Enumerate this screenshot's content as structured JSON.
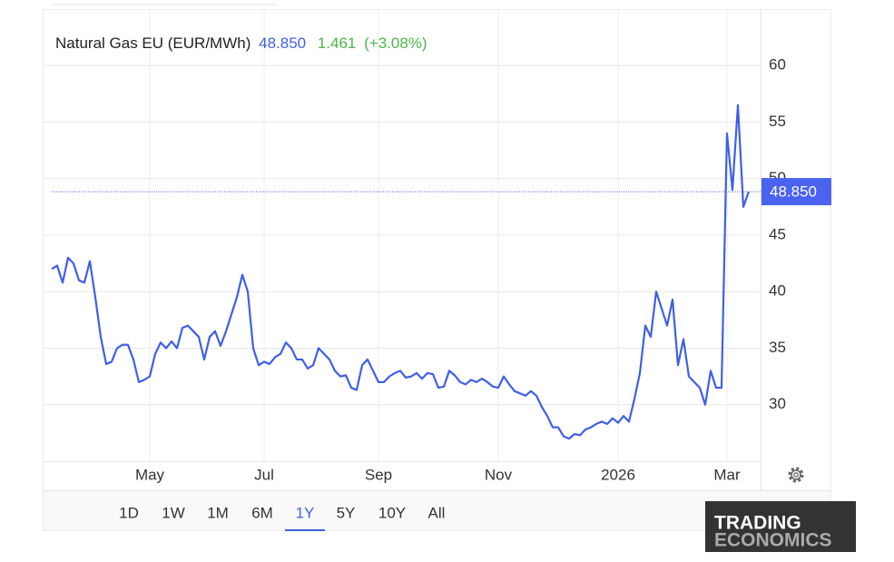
{
  "chart_data": {
    "type": "line",
    "title": "Natural Gas EU (EUR/MWh)",
    "last_price": {
      "value": 48.85,
      "label": "48.850"
    },
    "change": 1.461,
    "change_pct": {
      "value": 3.08,
      "label": "(+3.08%)"
    },
    "color": "#3f5fe6",
    "change_color": "#4fb548",
    "grid": true,
    "ylim": [
      25,
      65
    ],
    "yticks": [
      30,
      35,
      40,
      45,
      50,
      55,
      60
    ],
    "categories": [
      null,
      null,
      null,
      null,
      null,
      null,
      null,
      null,
      null,
      null,
      null,
      null,
      null,
      null,
      null,
      null,
      null,
      null,
      "May",
      null,
      null,
      null,
      null,
      null,
      null,
      null,
      null,
      null,
      null,
      null,
      null,
      null,
      null,
      null,
      null,
      null,
      null,
      null,
      null,
      "Jul",
      null,
      null,
      null,
      null,
      null,
      null,
      null,
      null,
      null,
      null,
      null,
      null,
      null,
      null,
      null,
      null,
      null,
      null,
      null,
      null,
      "Sep",
      null,
      null,
      null,
      null,
      null,
      null,
      null,
      null,
      null,
      null,
      null,
      null,
      null,
      null,
      null,
      null,
      null,
      null,
      null,
      null,
      null,
      "Nov",
      null,
      null,
      null,
      null,
      null,
      null,
      null,
      null,
      null,
      null,
      null,
      null,
      null,
      null,
      null,
      null,
      null,
      null,
      null,
      null,
      null,
      "2026",
      null,
      null,
      null,
      null,
      null,
      null,
      null,
      null,
      null,
      null,
      null,
      null,
      null,
      null,
      null,
      null,
      null,
      null,
      null,
      "Mar",
      null,
      null,
      null,
      null
    ],
    "values": [
      42,
      42.3,
      40.8,
      43,
      42.5,
      41,
      40.8,
      42.7,
      39.5,
      36,
      33.6,
      33.8,
      35,
      35.3,
      35.3,
      34,
      32,
      32.2,
      32.5,
      34.5,
      35.5,
      35,
      35.6,
      35,
      36.8,
      37,
      36.5,
      36,
      34,
      36,
      36.5,
      35.2,
      36.5,
      38,
      39.5,
      41.5,
      40,
      35,
      33.5,
      33.8,
      33.6,
      34.2,
      34.5,
      35.5,
      35,
      34,
      34,
      33.2,
      33.5,
      35,
      34.5,
      34,
      33,
      32.5,
      32.6,
      31.5,
      31.3,
      33.5,
      34,
      33,
      32,
      32,
      32.5,
      32.8,
      33,
      32.4,
      32.5,
      32.8,
      32.3,
      32.8,
      32.7,
      31.5,
      31.6,
      33,
      32.6,
      32,
      31.8,
      32.2,
      32,
      32.3,
      32,
      31.6,
      31.5,
      32.5,
      31.8,
      31.2,
      31,
      30.8,
      31.2,
      30.8,
      29.8,
      29,
      28,
      28,
      27.2,
      27,
      27.4,
      27.3,
      27.8,
      28,
      28.3,
      28.5,
      28.3,
      28.8,
      28.4,
      29,
      28.5,
      30.5,
      32.8,
      37,
      36,
      40,
      38.5,
      37,
      39.3,
      33.5,
      35.8,
      32.5,
      32,
      31.5,
      30,
      33,
      31.5,
      31.5,
      54,
      49,
      56.5,
      47.5,
      48.85
    ]
  },
  "range_buttons": [
    "1D",
    "1W",
    "1M",
    "6M",
    "1Y",
    "5Y",
    "10Y",
    "All"
  ],
  "selected_range": 4,
  "logo": {
    "line1": "TRADING",
    "line2": "ECONOMICS"
  }
}
